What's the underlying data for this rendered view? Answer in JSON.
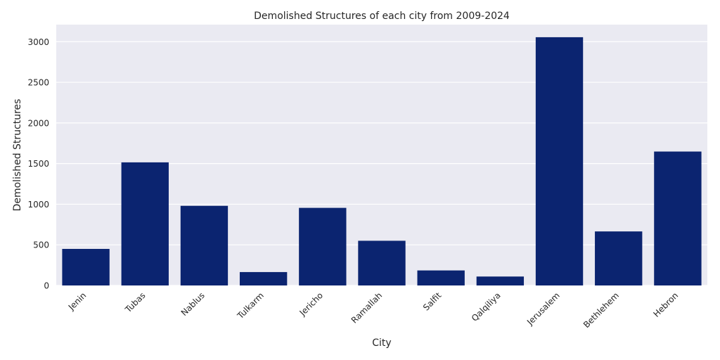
{
  "chart_data": {
    "type": "bar",
    "title": "Demolished Structures of each city from 2009-2024",
    "xlabel": "City",
    "ylabel": "Demolished Structures",
    "categories": [
      "Jenin",
      "Tubas",
      "Nablus",
      "Tulkarm",
      "Jericho",
      "Ramallah",
      "Salfit",
      "Qalqiliya",
      "Jerusalem",
      "Bethlehem",
      "Hebron"
    ],
    "values": [
      450,
      1515,
      980,
      165,
      955,
      550,
      185,
      110,
      3055,
      665,
      1648
    ],
    "ylim": [
      0,
      3210
    ],
    "yticks": [
      0,
      500,
      1000,
      1500,
      2000,
      2500,
      3000
    ],
    "grid": true,
    "bar_color": "#0b2470",
    "background_color": "#eaeaf2"
  }
}
